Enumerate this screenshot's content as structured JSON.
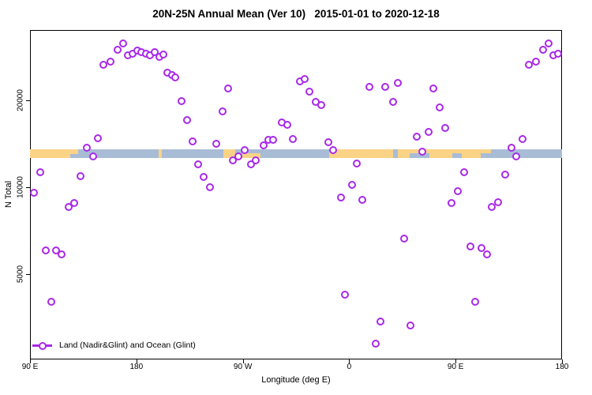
{
  "title": "20N-25N Annual Mean (Ver 10)   2015-01-01 to 2020-12-18",
  "colors": {
    "marker": "#A928E8",
    "land": "#FBD386",
    "ocean": "#A8BCD6",
    "axis": "#000000"
  },
  "chart_data": {
    "type": "scatter",
    "title": "20N-25N Annual Mean (Ver 10)   2015-01-01 to 2020-12-18",
    "xlabel": "Longitude (deg E)",
    "ylabel": "N Total",
    "x_axis": {
      "range": [
        90,
        540
      ],
      "ticks": [
        {
          "lon": 90,
          "label": "90 E"
        },
        {
          "lon": 180,
          "label": "180"
        },
        {
          "lon": 270,
          "label": "90 W"
        },
        {
          "lon": 360,
          "label": "0"
        },
        {
          "lon": 450,
          "label": "90 E"
        },
        {
          "lon": 540,
          "label": "180"
        }
      ]
    },
    "y_axis": {
      "scale": "log",
      "ticks": [
        5000,
        10000,
        20000
      ],
      "approx_range": [
        2500,
        35000
      ]
    },
    "legend": [
      {
        "label": "Land (Nadir&Glint) and Ocean (Glint)",
        "marker": "open-circle-on-line"
      }
    ],
    "map_strip": {
      "meaning": "land/ocean surface type band along 20N-25N",
      "land_segments": [
        {
          "from": 90,
          "to": 124,
          "extent": "full"
        },
        {
          "from": 124,
          "to": 131,
          "extent": "top"
        },
        {
          "from": 199,
          "to": 201.5,
          "extent": "full"
        },
        {
          "from": 253.5,
          "to": 263.5,
          "extent": "full"
        },
        {
          "from": 269.5,
          "to": 285,
          "extent": "bottom"
        },
        {
          "from": 343,
          "to": 397,
          "extent": "full"
        },
        {
          "from": 401,
          "to": 480,
          "extent": "full"
        }
      ],
      "ocean_notches": [
        {
          "from": 411,
          "to": 428,
          "extent": "bottom"
        },
        {
          "from": 447,
          "to": 455,
          "extent": "bottom"
        },
        {
          "from": 471,
          "to": 480,
          "extent": "bottom"
        }
      ]
    },
    "points": [
      [
        93.3,
        9570
      ],
      [
        98.7,
        11270
      ],
      [
        103.4,
        6040
      ],
      [
        108.0,
        4010
      ],
      [
        112.0,
        6040
      ],
      [
        116.7,
        5860
      ],
      [
        122.7,
        8540
      ],
      [
        127.4,
        8810
      ],
      [
        132.7,
        10920
      ],
      [
        138.1,
        13700
      ],
      [
        143.4,
        12790
      ],
      [
        147.4,
        14780
      ],
      [
        152.1,
        26560
      ],
      [
        158.1,
        27230
      ],
      [
        164.1,
        29930
      ],
      [
        168.8,
        31480
      ],
      [
        172.8,
        28660
      ],
      [
        176.8,
        29020
      ],
      [
        180.8,
        29760
      ],
      [
        184.1,
        29390
      ],
      [
        188.1,
        29020
      ],
      [
        191.5,
        28660
      ],
      [
        195.5,
        29390
      ],
      [
        199.5,
        28300
      ],
      [
        202.8,
        28840
      ],
      [
        206.2,
        24940
      ],
      [
        210.2,
        24470
      ],
      [
        212.8,
        24010
      ],
      [
        218.2,
        19880
      ],
      [
        222.8,
        17080
      ],
      [
        227.5,
        14410
      ],
      [
        232.2,
        12000
      ],
      [
        236.9,
        10850
      ],
      [
        242.2,
        10000
      ],
      [
        247.5,
        14140
      ],
      [
        252.9,
        18310
      ],
      [
        257.6,
        21990
      ],
      [
        261.6,
        12390
      ],
      [
        266.3,
        12790
      ],
      [
        271.6,
        13450
      ],
      [
        277.0,
        12000
      ],
      [
        281.0,
        12390
      ],
      [
        287.6,
        13960
      ],
      [
        291.6,
        14590
      ],
      [
        295.6,
        14590
      ],
      [
        303.0,
        16760
      ],
      [
        307.6,
        16450
      ],
      [
        312.3,
        14690
      ],
      [
        318.3,
        23270
      ],
      [
        322.3,
        23710
      ],
      [
        326.3,
        21440
      ],
      [
        331.6,
        19740
      ],
      [
        336.3,
        19260
      ],
      [
        342.4,
        14330
      ],
      [
        346.4,
        13450
      ],
      [
        353.0,
        9220
      ],
      [
        356.4,
        4250
      ],
      [
        362.4,
        10190
      ],
      [
        366.4,
        12080
      ],
      [
        371.0,
        9040
      ],
      [
        377.0,
        22280
      ],
      [
        382.4,
        2870
      ],
      [
        386.4,
        3430
      ],
      [
        390.4,
        22270
      ],
      [
        397.1,
        19740
      ],
      [
        401.1,
        22980
      ],
      [
        406.5,
        6640
      ],
      [
        411.8,
        3320
      ],
      [
        417.1,
        14980
      ],
      [
        421.8,
        13280
      ],
      [
        427.1,
        15550
      ],
      [
        431.2,
        22000
      ],
      [
        436.5,
        18900
      ],
      [
        441.2,
        16050
      ],
      [
        446.6,
        8810
      ],
      [
        451.9,
        9690
      ],
      [
        457.2,
        11270
      ],
      [
        462.5,
        6240
      ],
      [
        466.5,
        4010
      ],
      [
        471.9,
        6160
      ],
      [
        476.5,
        5860
      ],
      [
        480.5,
        8540
      ],
      [
        485.9,
        8850
      ],
      [
        491.9,
        11080
      ],
      [
        497.2,
        13700
      ],
      [
        501.2,
        12790
      ],
      [
        506.6,
        14690
      ],
      [
        511.9,
        26560
      ],
      [
        517.9,
        27230
      ],
      [
        523.9,
        29930
      ],
      [
        528.6,
        31480
      ],
      [
        532.6,
        28660
      ],
      [
        536.6,
        29020
      ]
    ]
  }
}
